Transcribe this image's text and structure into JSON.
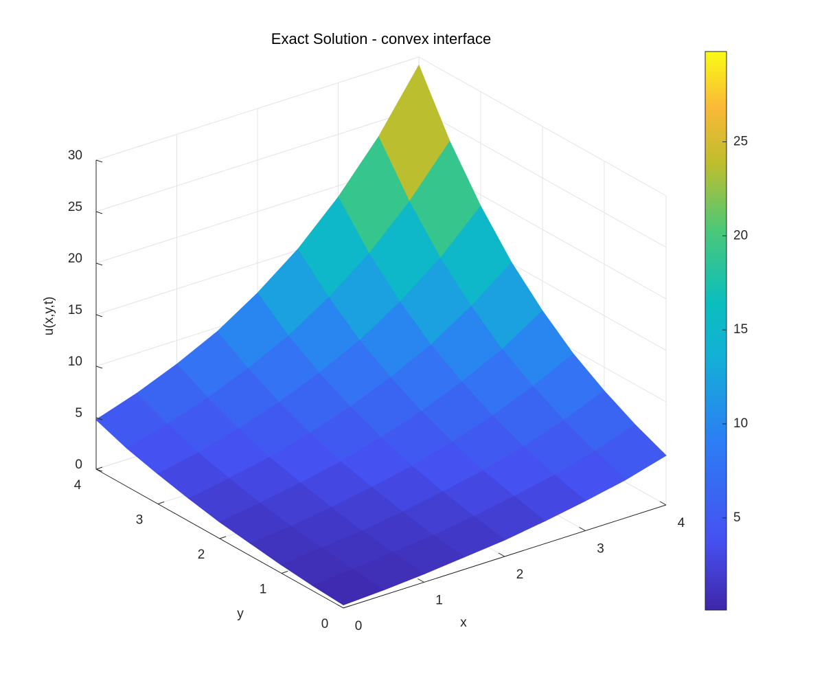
{
  "chart_data": {
    "type": "surface",
    "title": "Exact Solution - convex interface",
    "xlabel": "x",
    "ylabel": "y",
    "zlabel": "u(x,y,t)",
    "x": [
      0,
      0.5,
      1,
      1.5,
      2,
      2.5,
      3,
      3.5,
      4
    ],
    "y": [
      0,
      0.5,
      1,
      1.5,
      2,
      2.5,
      3,
      3.5,
      4
    ],
    "z": [
      [
        0.3,
        0.5,
        0.8,
        1.2,
        1.6,
        2.2,
        2.9,
        3.7,
        4.8
      ],
      [
        0.5,
        0.8,
        1.2,
        1.6,
        2.2,
        2.9,
        3.7,
        4.8,
        6.1
      ],
      [
        0.8,
        1.2,
        1.6,
        2.2,
        2.9,
        3.7,
        4.8,
        6.1,
        7.7
      ],
      [
        1.2,
        1.6,
        2.2,
        2.9,
        3.7,
        4.8,
        6.1,
        7.7,
        9.6
      ],
      [
        1.6,
        2.2,
        2.9,
        3.7,
        4.8,
        6.1,
        7.7,
        9.6,
        12.1
      ],
      [
        2.2,
        2.9,
        3.7,
        4.8,
        6.1,
        7.7,
        9.6,
        12.1,
        15.1
      ],
      [
        2.9,
        3.7,
        4.8,
        6.1,
        7.7,
        9.6,
        12.1,
        15.1,
        18.9
      ],
      [
        3.7,
        4.8,
        6.1,
        7.7,
        9.6,
        12.1,
        15.1,
        18.9,
        23.5
      ],
      [
        4.8,
        6.1,
        7.7,
        9.6,
        12.1,
        15.1,
        18.9,
        23.5,
        29.2
      ]
    ],
    "xlim": [
      0,
      4
    ],
    "ylim": [
      0,
      4
    ],
    "zlim": [
      0,
      30
    ],
    "xticks": [
      0,
      1,
      2,
      3,
      4
    ],
    "yticks": [
      0,
      1,
      2,
      3,
      4
    ],
    "zticks": [
      0,
      5,
      10,
      15,
      20,
      25,
      30
    ],
    "grid": true,
    "colormap": "parula",
    "colorbar": {
      "clim": [
        0.1,
        29.8
      ],
      "ticks": [
        5,
        10,
        15,
        20,
        25
      ]
    }
  }
}
